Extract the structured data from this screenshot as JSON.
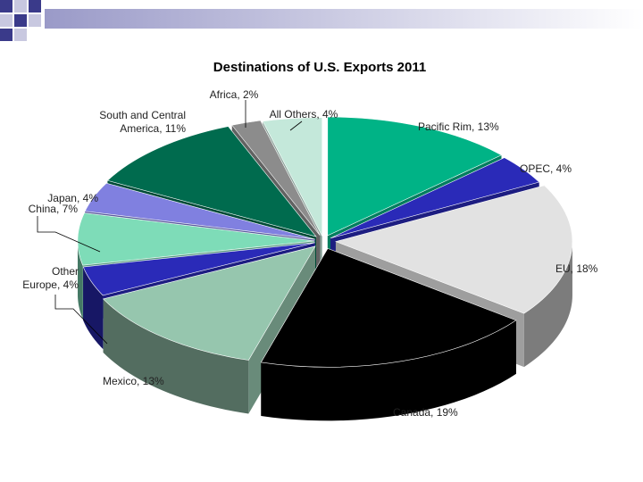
{
  "chart_data": {
    "type": "pie",
    "title": "Destinations of U.S. Exports 2011",
    "exploded": true,
    "three_d": true,
    "slices": [
      {
        "name": "Pacific Rim",
        "value": 13,
        "label": "Pacific Rim, 13%",
        "color": "#00B386"
      },
      {
        "name": "OPEC",
        "value": 4,
        "label": "OPEC, 4%",
        "color": "#2A2AB8"
      },
      {
        "name": "EU",
        "value": 18,
        "label": "EU, 18%",
        "color": "#E2E2E2"
      },
      {
        "name": "Canada",
        "value": 19,
        "label": "Canada, 19%",
        "color": "#000000"
      },
      {
        "name": "Mexico",
        "value": 13,
        "label": "Mexico, 13%",
        "color": "#96C6AE"
      },
      {
        "name": "Other Europe",
        "value": 4,
        "label": "Other Europe, 4%",
        "color": "#2A2AB8"
      },
      {
        "name": "China",
        "value": 7,
        "label": "China, 7%",
        "color": "#7EDCB8"
      },
      {
        "name": "Japan",
        "value": 4,
        "label": "Japan, 4%",
        "color": "#8080E0"
      },
      {
        "name": "South and Central America",
        "value": 11,
        "label": "South and Central America, 11%",
        "color": "#006B4E"
      },
      {
        "name": "Africa",
        "value": 2,
        "label": "Africa, 2%",
        "color": "#8C8C8C"
      },
      {
        "name": "All Others",
        "value": 4,
        "label": "All Others, 4%",
        "color": "#C4E8DA"
      }
    ]
  },
  "colors": {
    "decoration_dark": "#3A3A8A",
    "decoration_light": "#C8C8E0",
    "leader_line": "#000000"
  }
}
